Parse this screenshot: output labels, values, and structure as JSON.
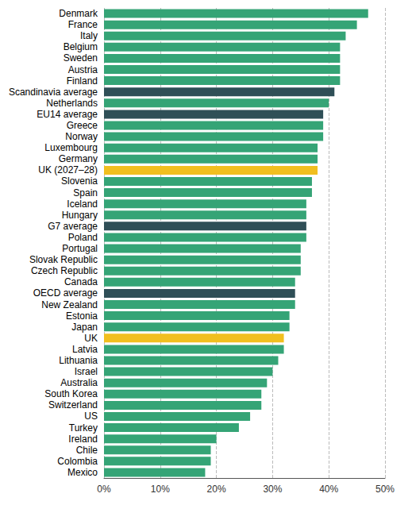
{
  "chart_data": {
    "type": "bar",
    "orientation": "horizontal",
    "grid": true,
    "categories": [
      "Denmark",
      "France",
      "Italy",
      "Belgium",
      "Sweden",
      "Austria",
      "Finland",
      "Scandinavia average",
      "Netherlands",
      "EU14 average",
      "Greece",
      "Norway",
      "Luxembourg",
      "Germany",
      "UK (2027–28)",
      "Slovenia",
      "Spain",
      "Iceland",
      "Hungary",
      "G7 average",
      "Poland",
      "Portugal",
      "Slovak Republic",
      "Czech Republic",
      "Canada",
      "OECD average",
      "New Zealand",
      "Estonia",
      "Japan",
      "UK",
      "Latvia",
      "Lithuania",
      "Israel",
      "Australia",
      "South Korea",
      "Switzerland",
      "US",
      "Turkey",
      "Ireland",
      "Chile",
      "Colombia",
      "Mexico"
    ],
    "values": [
      47,
      45,
      43,
      42,
      42,
      42,
      42,
      41,
      40,
      39,
      39,
      39,
      38,
      38,
      38,
      37,
      37,
      36,
      36,
      36,
      36,
      35,
      35,
      35,
      34,
      34,
      34,
      33,
      33,
      32,
      32,
      31,
      30,
      29,
      28,
      28,
      26,
      24,
      20,
      19,
      19,
      18
    ],
    "colors": [
      "#35a476",
      "#35a476",
      "#35a476",
      "#35a476",
      "#35a476",
      "#35a476",
      "#35a476",
      "#2f4f57",
      "#35a476",
      "#2f4f57",
      "#35a476",
      "#35a476",
      "#35a476",
      "#35a476",
      "#f1bf1f",
      "#35a476",
      "#35a476",
      "#35a476",
      "#35a476",
      "#2f4f57",
      "#35a476",
      "#35a476",
      "#35a476",
      "#35a476",
      "#35a476",
      "#2f4f57",
      "#35a476",
      "#35a476",
      "#35a476",
      "#f1bf1f",
      "#35a476",
      "#35a476",
      "#35a476",
      "#35a476",
      "#35a476",
      "#35a476",
      "#35a476",
      "#35a476",
      "#35a476",
      "#35a476",
      "#35a476",
      "#35a476"
    ],
    "xlim": [
      0,
      50
    ],
    "xticks": [
      {
        "value": 0,
        "label": "0%"
      },
      {
        "value": 10,
        "label": "10%"
      },
      {
        "value": 20,
        "label": "20%"
      },
      {
        "value": 30,
        "label": "30%"
      },
      {
        "value": 40,
        "label": "40%"
      },
      {
        "value": 50,
        "label": "50%"
      }
    ]
  }
}
